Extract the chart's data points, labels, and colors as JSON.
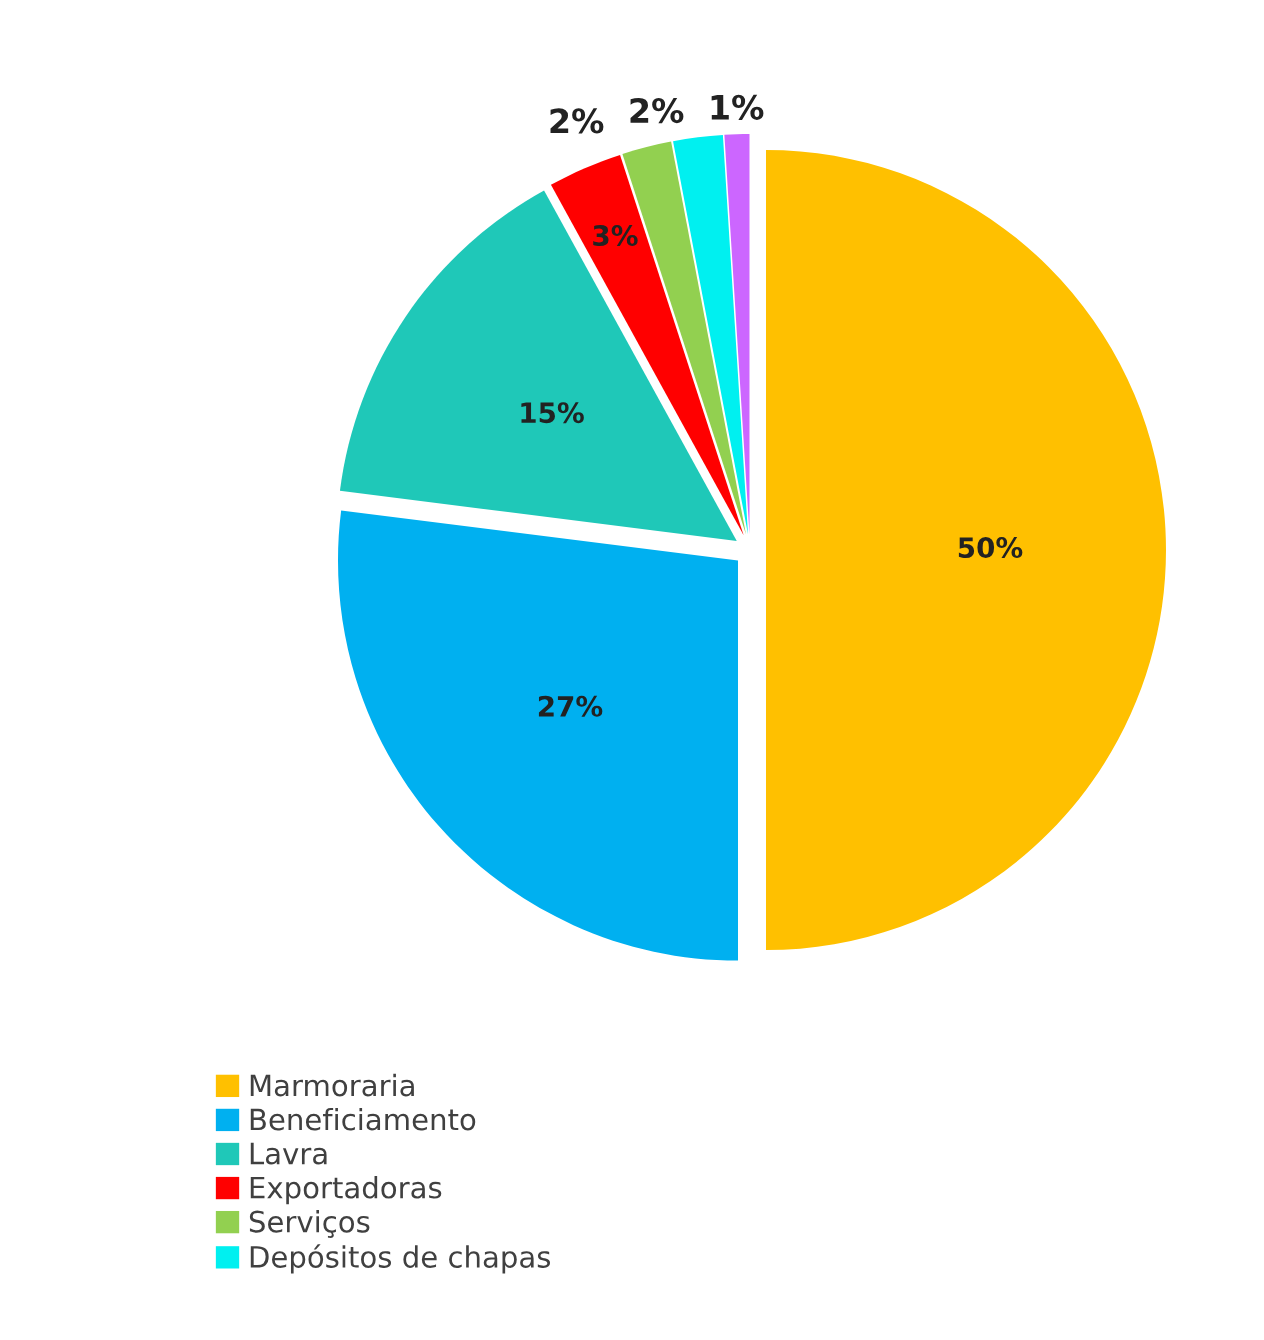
{
  "chart_data": {
    "type": "pie",
    "categories": [
      "Marmoraria",
      "Beneficiamento",
      "Lavra",
      "Exportadoras",
      "Serviços",
      "Depósitos de chapas",
      null
    ],
    "values": [
      50,
      27,
      15,
      3,
      2,
      2,
      1
    ],
    "value_labels": [
      "50%",
      "27%",
      "15%",
      "3%",
      "2%",
      "2%",
      "1%"
    ],
    "colors": [
      "#ffc000",
      "#00b0f0",
      "#1fc8b8",
      "#ff0000",
      "#92d050",
      "#00f0f0",
      "#cc66ff"
    ],
    "legend": "bottom left"
  }
}
